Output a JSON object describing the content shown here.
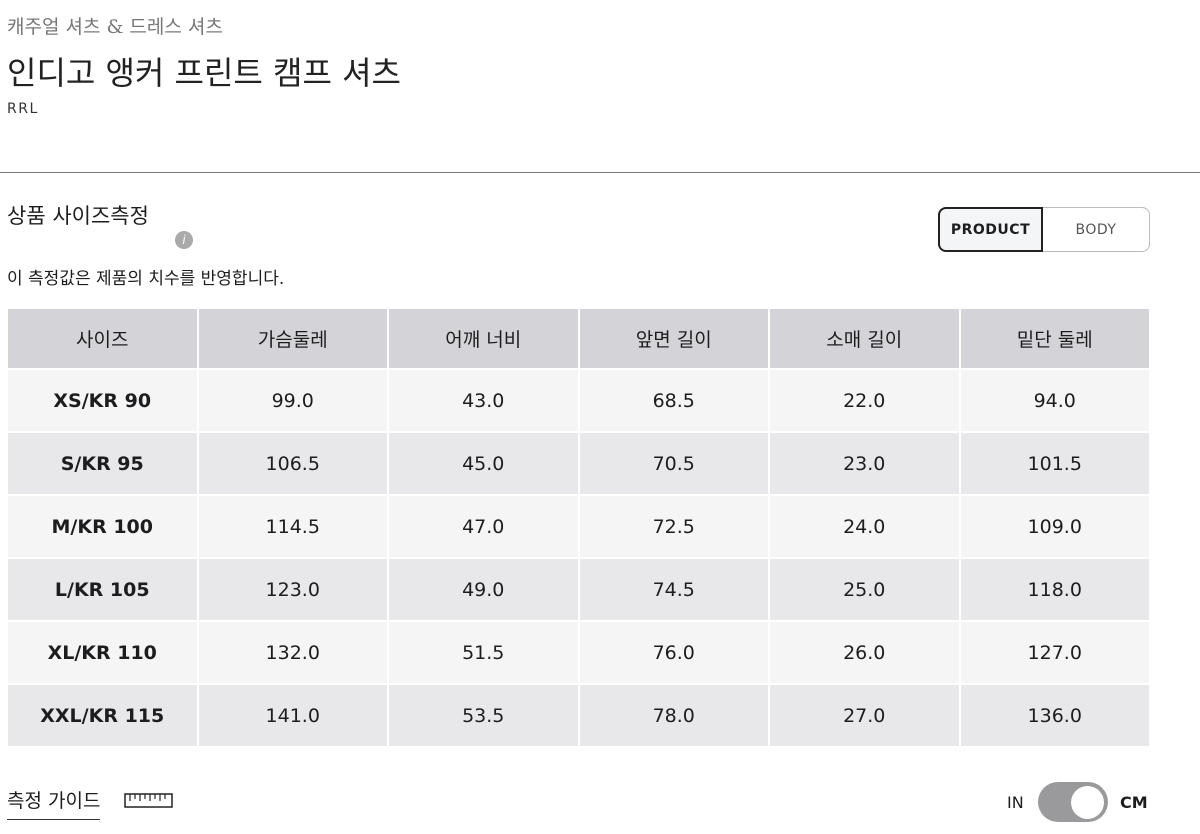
{
  "header": {
    "category": "캐주얼 셔츠 & 드레스 셔츠",
    "title": "인디고 앵커 프린트 캠프 셔츠",
    "brand": "RRL"
  },
  "section": {
    "title": "상품 사이즈측정",
    "description": "이 측정값은 제품의 치수를 반영합니다.",
    "tabs": [
      "PRODUCT",
      "BODY"
    ]
  },
  "table": {
    "columns": [
      "사이즈",
      "가슴둘레",
      "어깨 너비",
      "앞면 길이",
      "소매 길이",
      "밑단 둘레"
    ],
    "rows": [
      [
        "XS/KR 90",
        "99.0",
        "43.0",
        "68.5",
        "22.0",
        "94.0"
      ],
      [
        "S/KR 95",
        "106.5",
        "45.0",
        "70.5",
        "23.0",
        "101.5"
      ],
      [
        "M/KR 100",
        "114.5",
        "47.0",
        "72.5",
        "24.0",
        "109.0"
      ],
      [
        "L/KR 105",
        "123.0",
        "49.0",
        "74.5",
        "25.0",
        "118.0"
      ],
      [
        "XL/KR 110",
        "132.0",
        "51.5",
        "76.0",
        "26.0",
        "127.0"
      ],
      [
        "XXL/KR 115",
        "141.0",
        "53.5",
        "78.0",
        "27.0",
        "136.0"
      ]
    ]
  },
  "footer": {
    "guide": "측정 가이드",
    "unit_left": "IN",
    "unit_right": "CM"
  }
}
